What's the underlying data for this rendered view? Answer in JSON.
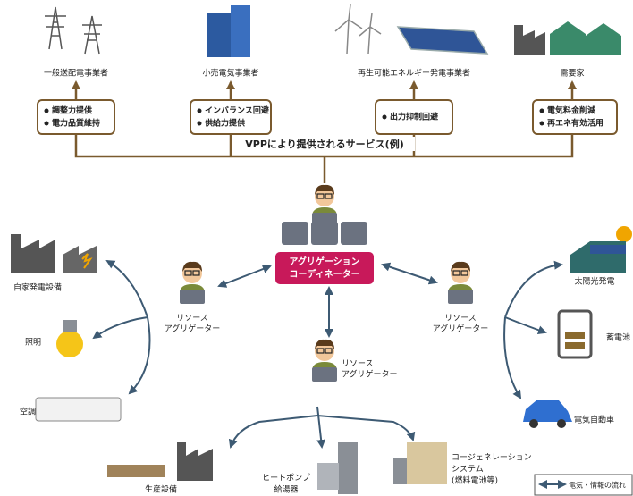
{
  "stakeholders": [
    {
      "label": "一般送配電事業者",
      "services": [
        "調整力提供",
        "電力品質維持"
      ]
    },
    {
      "label": "小売電気事業者",
      "services": [
        "インバランス回避",
        "供給力提供"
      ]
    },
    {
      "label": "再生可能エネルギー発電事業者",
      "services": [
        "出力抑制回避"
      ]
    },
    {
      "label": "需要家",
      "services": [
        "電気料金削減",
        "再エネ有効活用"
      ]
    }
  ],
  "banner": "VPPにより提供されるサービス(例)",
  "coordinator": {
    "lines": [
      "アグリゲーション",
      "コーディネーター"
    ]
  },
  "aggregators": [
    {
      "lines": [
        "リソース",
        "アグリゲーター"
      ]
    },
    {
      "lines": [
        "リソース",
        "アグリゲーター"
      ]
    },
    {
      "lines": [
        "リソース",
        "アグリゲーター"
      ]
    }
  ],
  "resources": {
    "left": [
      "自家発電設備",
      "照明",
      "空調",
      "生産設備"
    ],
    "right": [
      "太陽光発電",
      "蓄電池",
      "電気自動車"
    ],
    "bottom": [
      {
        "lines": [
          "ヒートポンプ",
          "給湯器"
        ]
      },
      {
        "lines": [
          "コージェネレーション",
          "システム",
          "(燃料電池等)"
        ]
      }
    ]
  },
  "legend": "電気・情報の流れ"
}
